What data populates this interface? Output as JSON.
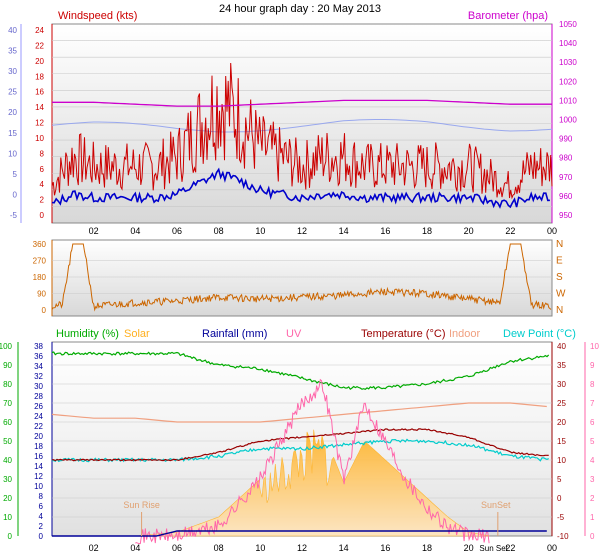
{
  "title": "24 hour graph day : 20 May 2013",
  "x_ticks": [
    "02",
    "04",
    "06",
    "08",
    "10",
    "12",
    "14",
    "16",
    "18",
    "20",
    "22",
    "00"
  ],
  "colors": {
    "windspeed": "#cc0000",
    "wind_avg": "#0000cc",
    "barometer": "#cc00cc",
    "baro_line": "#99a8ee",
    "direction": "#cc6600",
    "humidity": "#00aa00",
    "solar": "#ffb020",
    "rainfall": "#000099",
    "uv": "#ff66aa",
    "temperature": "#990000",
    "indoor": "#f0a080",
    "dewpoint": "#00cccc"
  },
  "chart_data": [
    {
      "type": "line",
      "title": "",
      "x_range": [
        0,
        24
      ],
      "y_left_label": "Windspeed (kts)",
      "y_left_ticks": [
        "0",
        "2",
        "4",
        "6",
        "8",
        "10",
        "12",
        "14",
        "16",
        "18",
        "20",
        "22",
        "24"
      ],
      "y_left_ticks_outer": [
        "-5",
        "0",
        "5",
        "10",
        "15",
        "20",
        "25",
        "30",
        "35",
        "40"
      ],
      "y_right_label": "Barometer (hpa)",
      "y_right_ticks": [
        "950",
        "960",
        "970",
        "980",
        "990",
        "1000",
        "1010",
        "1020",
        "1030",
        "1040",
        "1050"
      ],
      "series": [
        {
          "name": "Windspeed (kts)",
          "x": [
            0,
            1,
            2,
            3,
            4,
            5,
            6,
            7,
            8,
            9,
            10,
            11,
            12,
            13,
            14,
            15,
            16,
            17,
            18,
            19,
            20,
            21,
            22,
            23,
            23.9
          ],
          "values": [
            3,
            6,
            5,
            5,
            5,
            5,
            6,
            9,
            12,
            10,
            7,
            6,
            5,
            6,
            6,
            5,
            5,
            5,
            5,
            5,
            5,
            4,
            3,
            5,
            5
          ]
        },
        {
          "name": "Barometer (hpa)",
          "x": [
            0,
            2,
            4,
            6,
            8,
            10,
            12,
            14,
            16,
            18,
            20,
            22,
            23.9
          ],
          "values": [
            1009,
            1009,
            1008,
            1007,
            1007,
            1008,
            1009,
            1010,
            1010,
            1010,
            1009,
            1008,
            1008
          ]
        }
      ]
    },
    {
      "type": "line",
      "title": "",
      "x_range": [
        0,
        24
      ],
      "y_left_ticks": [
        "0",
        "90",
        "180",
        "270",
        "360"
      ],
      "y_right_ticks": [
        "N",
        "W",
        "S",
        "E",
        "N"
      ],
      "series": [
        {
          "name": "Wind Direction",
          "x": [
            0,
            0.5,
            1,
            1.5,
            2,
            4,
            6,
            8,
            10,
            12,
            14,
            16,
            18,
            20,
            21.5,
            22,
            22.5,
            23,
            23.9
          ],
          "values": [
            20,
            30,
            360,
            360,
            20,
            40,
            50,
            70,
            60,
            70,
            80,
            100,
            90,
            60,
            40,
            360,
            360,
            30,
            20
          ]
        }
      ]
    },
    {
      "type": "line",
      "title": "",
      "x_range": [
        0,
        24
      ],
      "legend": [
        "Humidity (%)",
        "Solar",
        "Rainfall (mm)",
        "UV",
        "Temperature (°C)",
        "Indoor",
        "Dew Point (°C)"
      ],
      "y_humidity_ticks": [
        "0",
        "10",
        "20",
        "30",
        "40",
        "50",
        "60",
        "70",
        "80",
        "90",
        "100"
      ],
      "y_rain_ticks": [
        "0",
        "2",
        "4",
        "6",
        "8",
        "10",
        "12",
        "14",
        "16",
        "18",
        "20",
        "22",
        "24",
        "26",
        "28",
        "30",
        "32",
        "34",
        "36",
        "38"
      ],
      "y_temp_ticks": [
        "-10",
        "-5",
        "0",
        "5",
        "10",
        "15",
        "20",
        "25",
        "30",
        "35",
        "40"
      ],
      "y_uv_ticks": [
        "0",
        "1",
        "2",
        "3",
        "4",
        "5",
        "6",
        "7",
        "8",
        "9",
        "10"
      ],
      "annotations": [
        "Sun Rise",
        "SunSet",
        "Sun Set"
      ],
      "series": [
        {
          "name": "Humidity (%)",
          "x": [
            0,
            2,
            4,
            6,
            8,
            10,
            12,
            14,
            16,
            18,
            20,
            22,
            23.9
          ],
          "values": [
            96,
            96,
            96,
            96,
            90,
            88,
            83,
            78,
            78,
            80,
            84,
            92,
            95
          ]
        },
        {
          "name": "Temperature (°C)",
          "x": [
            0,
            2,
            4,
            6,
            8,
            10,
            12,
            14,
            16,
            18,
            20,
            22,
            23.9
          ],
          "values": [
            10,
            10,
            10,
            10,
            12,
            15,
            16,
            17,
            18,
            18,
            16,
            12,
            11
          ]
        },
        {
          "name": "Dew Point (°C)",
          "x": [
            0,
            2,
            4,
            6,
            8,
            10,
            12,
            14,
            16,
            18,
            20,
            22,
            23.9
          ],
          "values": [
            10,
            10,
            10,
            10,
            11,
            13,
            13,
            14,
            15,
            15,
            14,
            11,
            10
          ]
        },
        {
          "name": "Indoor",
          "x": [
            0,
            2,
            4,
            6,
            8,
            10,
            12,
            14,
            16,
            18,
            20,
            22,
            23.9
          ],
          "values": [
            22,
            21,
            21,
            20,
            20,
            20,
            21,
            22,
            23,
            24,
            25,
            25,
            24
          ]
        },
        {
          "name": "UV",
          "x": [
            4,
            6,
            8,
            10,
            11,
            12,
            13,
            14,
            15,
            16,
            17,
            18,
            19,
            20,
            21
          ],
          "values": [
            0,
            0,
            0.5,
            3,
            5,
            7,
            8,
            3,
            7,
            5,
            3,
            1.5,
            0.5,
            0,
            0
          ]
        },
        {
          "name": "Solar",
          "x": [
            4,
            6,
            8,
            10,
            11,
            12,
            13,
            14,
            15,
            16,
            17,
            18,
            19,
            20,
            21
          ],
          "values": [
            0,
            1,
            5,
            15,
            20,
            26,
            28,
            14,
            25,
            20,
            15,
            10,
            5,
            1,
            0
          ]
        },
        {
          "name": "Rainfall (mm)",
          "x": [
            0,
            4,
            5,
            6,
            23.9
          ],
          "values": [
            0,
            0,
            0,
            1,
            1
          ]
        }
      ]
    }
  ]
}
